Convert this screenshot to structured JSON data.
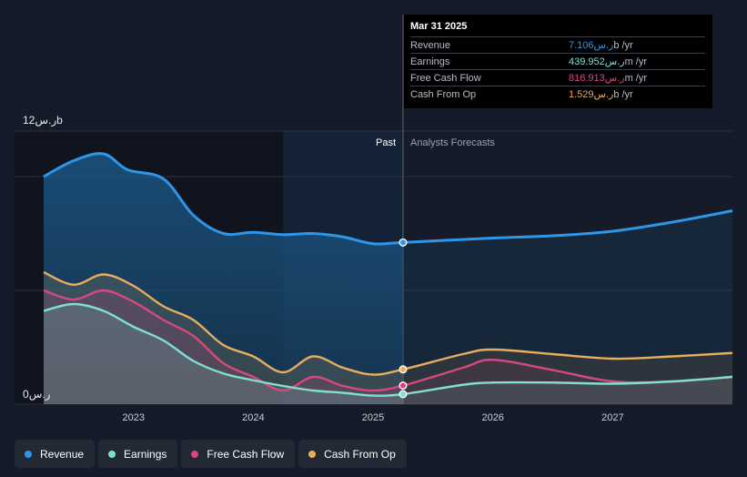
{
  "colors": {
    "background": "#151b28",
    "revenue": "#2f95e6",
    "earnings": "#7fe0d0",
    "free_cash_flow": "#d6497e",
    "cash_from_op": "#e8ad5d",
    "past_fill": "#1b4a6e"
  },
  "tooltip": {
    "title": "Mar 31 2025",
    "rows": [
      {
        "label": "Revenue",
        "value": "7.106ر.س",
        "unit_suffix": "b /yr"
      },
      {
        "label": "Earnings",
        "value": "439.952ر.س",
        "unit_suffix": "m /yr"
      },
      {
        "label": "Free Cash Flow",
        "value": "816.913ر.س",
        "unit_suffix": "m /yr"
      },
      {
        "label": "Cash From Op",
        "value": "1.529ر.س",
        "unit_suffix": "b /yr"
      }
    ]
  },
  "chart_data": {
    "type": "area",
    "title": "",
    "y_top_label": "12ر.س b",
    "y_top_prefix": "12",
    "y_top_currency": "ر.س",
    "y_top_suffix": "b",
    "y_bottom_label": "0ر.س",
    "y_bottom_prefix": "0",
    "y_bottom_currency": "ر.س",
    "past_label": "Past",
    "forecast_label": "Analysts Forecasts",
    "ylim": [
      0,
      12
    ],
    "xlim": [
      2022.25,
      2028.0
    ],
    "divider_x": 2025.25,
    "past_shade_start": 2024.25,
    "x_ticks": [
      {
        "value": 2023.0,
        "label": "2023"
      },
      {
        "value": 2024.0,
        "label": "2024"
      },
      {
        "value": 2025.0,
        "label": "2025"
      },
      {
        "value": 2026.0,
        "label": "2026"
      },
      {
        "value": 2027.0,
        "label": "2027"
      }
    ],
    "series": [
      {
        "name": "Revenue",
        "key": "revenue",
        "past": [
          [
            2022.25,
            10.0
          ],
          [
            2022.5,
            10.7
          ],
          [
            2022.75,
            11.0
          ],
          [
            2022.95,
            10.3
          ],
          [
            2023.25,
            9.9
          ],
          [
            2023.5,
            8.3
          ],
          [
            2023.75,
            7.5
          ],
          [
            2024.0,
            7.55
          ],
          [
            2024.25,
            7.45
          ],
          [
            2024.5,
            7.5
          ],
          [
            2024.75,
            7.35
          ],
          [
            2025.0,
            7.05
          ],
          [
            2025.25,
            7.106
          ]
        ],
        "forecast": [
          [
            2025.25,
            7.106
          ],
          [
            2026.0,
            7.3
          ],
          [
            2026.5,
            7.4
          ],
          [
            2027.0,
            7.6
          ],
          [
            2027.5,
            8.0
          ],
          [
            2028.0,
            8.5
          ]
        ]
      },
      {
        "name": "Earnings",
        "key": "earnings",
        "past": [
          [
            2022.25,
            4.1
          ],
          [
            2022.5,
            4.4
          ],
          [
            2022.75,
            4.1
          ],
          [
            2023.0,
            3.4
          ],
          [
            2023.25,
            2.8
          ],
          [
            2023.5,
            1.9
          ],
          [
            2023.75,
            1.35
          ],
          [
            2024.0,
            1.05
          ],
          [
            2024.25,
            0.8
          ],
          [
            2024.5,
            0.6
          ],
          [
            2024.75,
            0.5
          ],
          [
            2025.0,
            0.38
          ],
          [
            2025.25,
            0.44
          ]
        ],
        "forecast": [
          [
            2025.25,
            0.44
          ],
          [
            2025.75,
            0.85
          ],
          [
            2026.0,
            0.95
          ],
          [
            2026.5,
            0.95
          ],
          [
            2027.0,
            0.9
          ],
          [
            2027.5,
            1.0
          ],
          [
            2028.0,
            1.2
          ]
        ]
      },
      {
        "name": "Free Cash Flow",
        "key": "free_cash_flow",
        "past": [
          [
            2022.25,
            5.0
          ],
          [
            2022.5,
            4.6
          ],
          [
            2022.75,
            5.0
          ],
          [
            2023.0,
            4.5
          ],
          [
            2023.25,
            3.7
          ],
          [
            2023.5,
            3.0
          ],
          [
            2023.75,
            1.8
          ],
          [
            2024.0,
            1.2
          ],
          [
            2024.25,
            0.6
          ],
          [
            2024.5,
            1.2
          ],
          [
            2024.75,
            0.8
          ],
          [
            2025.0,
            0.6
          ],
          [
            2025.25,
            0.817
          ]
        ],
        "forecast": [
          [
            2025.25,
            0.817
          ],
          [
            2025.75,
            1.6
          ],
          [
            2026.0,
            1.95
          ],
          [
            2026.5,
            1.5
          ],
          [
            2027.0,
            1.0
          ],
          [
            2027.5,
            1.0
          ],
          [
            2028.0,
            1.2
          ]
        ]
      },
      {
        "name": "Cash From Op",
        "key": "cash_from_op",
        "past": [
          [
            2022.25,
            5.8
          ],
          [
            2022.5,
            5.25
          ],
          [
            2022.75,
            5.7
          ],
          [
            2023.0,
            5.2
          ],
          [
            2023.25,
            4.3
          ],
          [
            2023.5,
            3.7
          ],
          [
            2023.75,
            2.6
          ],
          [
            2024.0,
            2.1
          ],
          [
            2024.25,
            1.4
          ],
          [
            2024.5,
            2.1
          ],
          [
            2024.75,
            1.6
          ],
          [
            2025.0,
            1.3
          ],
          [
            2025.25,
            1.529
          ]
        ],
        "forecast": [
          [
            2025.25,
            1.529
          ],
          [
            2025.75,
            2.2
          ],
          [
            2026.0,
            2.4
          ],
          [
            2026.5,
            2.2
          ],
          [
            2027.0,
            2.0
          ],
          [
            2027.5,
            2.1
          ],
          [
            2028.0,
            2.25
          ]
        ]
      }
    ],
    "legend": [
      "Revenue",
      "Earnings",
      "Free Cash Flow",
      "Cash From Op"
    ]
  }
}
